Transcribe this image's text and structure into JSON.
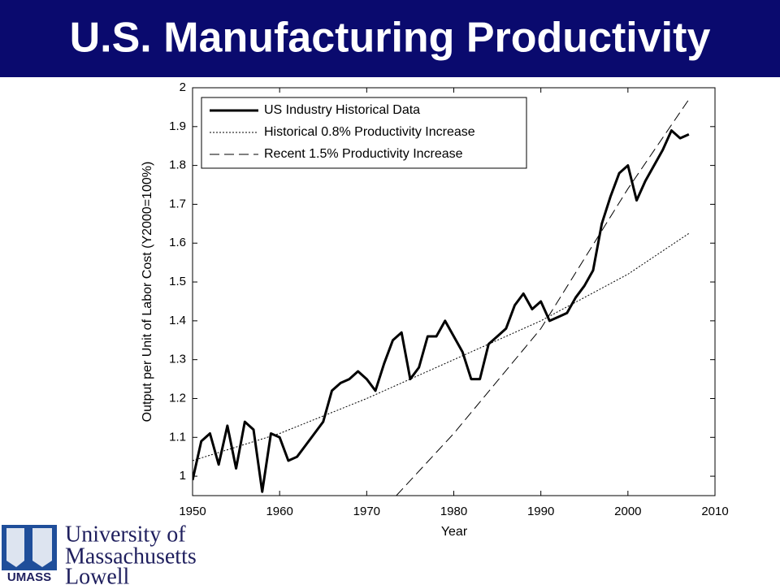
{
  "title": "U.S. Manufacturing Productivity",
  "chart_data": {
    "type": "line",
    "xlabel": "Year",
    "ylabel": "Output per Unit of Labor Cost (Y2000=100%)",
    "xlim": [
      1950,
      2010
    ],
    "xticks": [
      1950,
      1960,
      1970,
      1980,
      1990,
      2000,
      2010
    ],
    "ylim": [
      0.95,
      2
    ],
    "yticks": [
      1,
      1.1,
      1.2,
      1.3,
      1.4,
      1.5,
      1.6,
      1.7,
      1.8,
      1.9,
      2
    ],
    "legend": "upper left",
    "series": [
      {
        "name": "US Industry Historical Data",
        "color": "#000000",
        "style": "solid",
        "x": [
          1950,
          1951,
          1952,
          1953,
          1954,
          1955,
          1956,
          1957,
          1958,
          1959,
          1960,
          1961,
          1962,
          1963,
          1964,
          1965,
          1966,
          1967,
          1968,
          1969,
          1970,
          1971,
          1972,
          1973,
          1974,
          1975,
          1976,
          1977,
          1978,
          1979,
          1980,
          1981,
          1982,
          1983,
          1984,
          1985,
          1986,
          1987,
          1988,
          1989,
          1990,
          1991,
          1992,
          1993,
          1994,
          1995,
          1996,
          1997,
          1998,
          1999,
          2000,
          2001,
          2002,
          2003,
          2004,
          2005,
          2006,
          2007
        ],
        "values": [
          0.99,
          1.09,
          1.11,
          1.03,
          1.13,
          1.02,
          1.14,
          1.12,
          0.96,
          1.11,
          1.1,
          1.04,
          1.05,
          1.08,
          1.11,
          1.14,
          1.22,
          1.24,
          1.25,
          1.27,
          1.25,
          1.22,
          1.29,
          1.35,
          1.37,
          1.25,
          1.28,
          1.36,
          1.36,
          1.4,
          1.36,
          1.32,
          1.25,
          1.25,
          1.34,
          1.36,
          1.38,
          1.44,
          1.47,
          1.43,
          1.45,
          1.4,
          1.41,
          1.42,
          1.46,
          1.49,
          1.53,
          1.65,
          1.72,
          1.78,
          1.8,
          1.71,
          1.76,
          1.8,
          1.84,
          1.89,
          1.87,
          1.88
        ]
      },
      {
        "name": "Historical 0.8% Productivity Increase",
        "color": "#000000",
        "style": "dotted",
        "x": [
          1950,
          1960,
          1970,
          1980,
          1990,
          2000,
          2007
        ],
        "values": [
          1.04,
          1.11,
          1.2,
          1.3,
          1.4,
          1.52,
          1.625
        ]
      },
      {
        "name": "Recent 1.5% Productivity Increase",
        "color": "#000000",
        "style": "dashed",
        "x": [
          1973.4,
          1980,
          1990,
          2000,
          2007
        ],
        "values": [
          0.95,
          1.11,
          1.38,
          1.74,
          1.97
        ]
      }
    ]
  },
  "logo": {
    "lines": [
      "University of",
      "Massachusetts",
      "Lowell"
    ],
    "mark": "UMASS"
  }
}
